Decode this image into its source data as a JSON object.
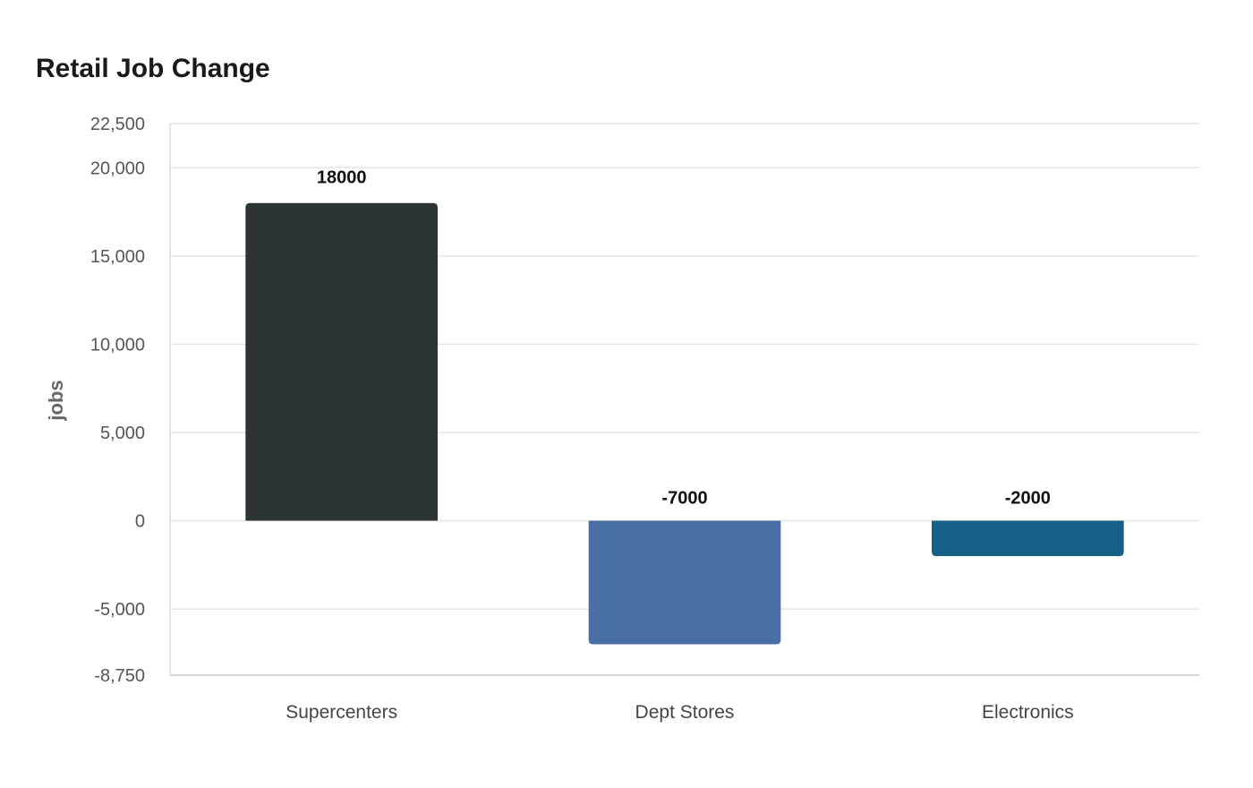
{
  "chart_data": {
    "type": "bar",
    "title": "Retail Job Change",
    "xlabel": "",
    "ylabel": "jobs",
    "categories": [
      "Supercenters",
      "Dept Stores",
      "Electronics"
    ],
    "values": [
      18000,
      -7000,
      -2000
    ],
    "value_labels": [
      "18000",
      "-7000",
      "-2000"
    ],
    "colors": [
      "#2d3436",
      "#4a6fa5",
      "#166088"
    ],
    "ylim": [
      -8750,
      22500
    ],
    "yticks": [
      -8750,
      -5000,
      0,
      5000,
      10000,
      15000,
      20000,
      22500
    ],
    "ytick_labels": [
      "-8,750",
      "-5,000",
      "0",
      "5,000",
      "10,000",
      "15,000",
      "20,000",
      "22,500"
    ],
    "grid": true,
    "legend": "none"
  }
}
